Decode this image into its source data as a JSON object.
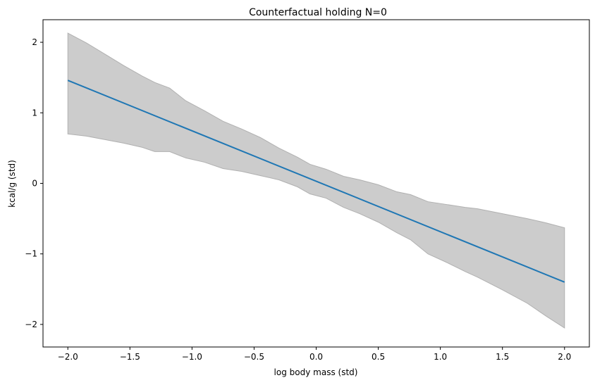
{
  "chart_data": {
    "type": "line",
    "title": "Counterfactual holding N=0",
    "xlabel": "log body mass (std)",
    "ylabel": "kcal/g (std)",
    "xlim": [
      -2.2,
      2.2
    ],
    "ylim": [
      -2.32,
      2.32
    ],
    "xticks": [
      -2.0,
      -1.5,
      -1.0,
      -0.5,
      0.0,
      0.5,
      1.0,
      1.5,
      2.0
    ],
    "xtick_labels": [
      "−2.0",
      "−1.5",
      "−1.0",
      "−0.5",
      "0.0",
      "0.5",
      "1.0",
      "1.5",
      "2.0"
    ],
    "yticks": [
      -2,
      -1,
      0,
      1,
      2
    ],
    "ytick_labels": [
      "−2",
      "−1",
      "0",
      "1",
      "2"
    ],
    "grid": false,
    "colors": {
      "line": "#1f77b4",
      "band_fill": "#cccccc",
      "band_edge": "#b0b0b0"
    },
    "series": [
      {
        "type": "line",
        "x": [
          -2.0,
          2.0
        ],
        "y": [
          1.46,
          -1.4
        ]
      },
      {
        "type": "area",
        "x": [
          -2.0,
          -1.85,
          -1.7,
          -1.55,
          -1.4,
          -1.3,
          -1.18,
          -1.05,
          -0.9,
          -0.75,
          -0.6,
          -0.45,
          -0.3,
          -0.15,
          -0.05,
          0.08,
          0.22,
          0.35,
          0.5,
          0.65,
          0.76,
          0.9,
          1.05,
          1.2,
          1.3,
          1.5,
          1.7,
          1.85,
          2.0
        ],
        "upper": [
          2.13,
          1.99,
          1.83,
          1.67,
          1.52,
          1.43,
          1.35,
          1.17,
          1.03,
          0.88,
          0.77,
          0.65,
          0.5,
          0.37,
          0.27,
          0.2,
          0.1,
          0.05,
          -0.02,
          -0.12,
          -0.16,
          -0.26,
          -0.3,
          -0.34,
          -0.36,
          -0.43,
          -0.5,
          -0.56,
          -0.63
        ],
        "lower": [
          0.7,
          0.67,
          0.62,
          0.57,
          0.51,
          0.45,
          0.45,
          0.36,
          0.3,
          0.21,
          0.17,
          0.11,
          0.05,
          -0.05,
          -0.15,
          -0.21,
          -0.34,
          -0.43,
          -0.55,
          -0.7,
          -0.8,
          -1.0,
          -1.12,
          -1.25,
          -1.33,
          -1.51,
          -1.7,
          -1.88,
          -2.05
        ]
      }
    ]
  }
}
